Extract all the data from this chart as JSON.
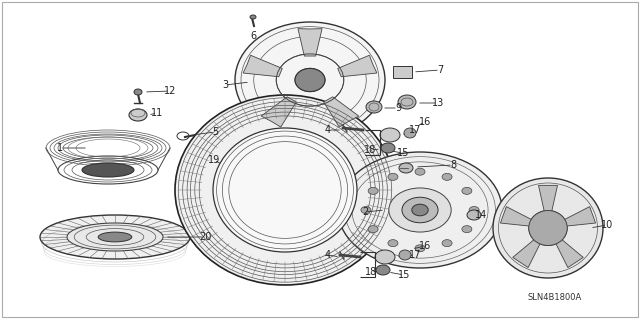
{
  "background_color": "#ffffff",
  "diagram_code": "SLN4B1800A",
  "fig_width": 6.4,
  "fig_height": 3.19,
  "dpi": 100,
  "label_fontsize": 7,
  "label_color": "#222222",
  "line_color": "#444444"
}
